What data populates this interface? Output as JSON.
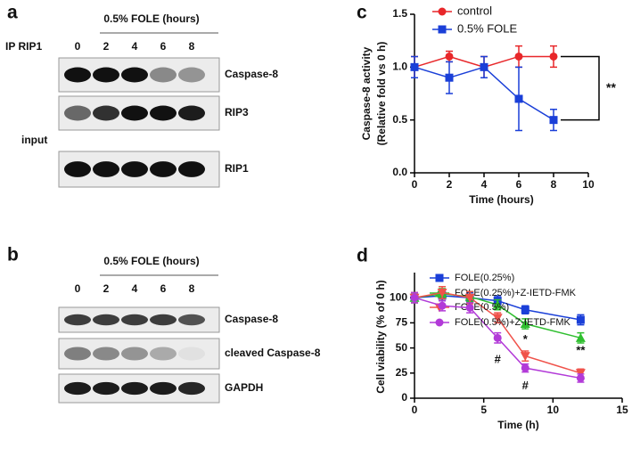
{
  "blots": [
    {
      "panel_label": "a",
      "title": "0.5% FOLE (hours)",
      "lanes": [
        0,
        2,
        4,
        6,
        8
      ],
      "ip_label": "IP RIP1",
      "input_label": "input",
      "rows": [
        "Caspase-8",
        "RIP3",
        "RIP1"
      ]
    },
    {
      "panel_label": "b",
      "title": "0.5% FOLE (hours)",
      "lanes": [
        0,
        2,
        4,
        6,
        8
      ],
      "rows": [
        "Caspase-8",
        "cleaved Caspase-8",
        "GAPDH"
      ]
    }
  ],
  "chart_data": [
    {
      "type": "line",
      "panel_label": "c",
      "x_label": "Time (hours)",
      "y_label": [
        "Caspase-8 activity",
        "(Relative fold vs 0 h)"
      ],
      "x": [
        0,
        2,
        4,
        6,
        8
      ],
      "xlim": [
        0,
        10
      ],
      "xticks": [
        0,
        2,
        4,
        6,
        8,
        10
      ],
      "ylim": [
        0,
        1.5
      ],
      "yticks": [
        {
          "value": 0,
          "label": "0.0"
        },
        {
          "value": 0.5,
          "label": "0.5"
        },
        {
          "value": 1,
          "label": "1.0"
        },
        {
          "value": 1.5,
          "label": "1.5"
        }
      ],
      "series": [
        {
          "name": "control",
          "color": "#e8272a",
          "marker": "circle",
          "values": [
            1,
            1.1,
            1,
            1.1,
            1.1
          ],
          "errors": [
            0.1,
            0.05,
            0.1,
            0.1,
            0.1
          ]
        },
        {
          "name": "0.5% FOLE",
          "color": "#1a3fd8",
          "marker": "square",
          "values": [
            1,
            0.9,
            1,
            0.7,
            0.5
          ],
          "errors": [
            0.1,
            0.15,
            0.1,
            0.3,
            0.1
          ]
        }
      ],
      "annotations": [
        "**"
      ]
    },
    {
      "type": "line",
      "panel_label": "d",
      "x_label": "Time (h)",
      "y_label": [
        "Cell viability (% of 0 h)"
      ],
      "x": [
        0,
        2,
        4,
        6,
        8,
        12
      ],
      "xlim": [
        0,
        15
      ],
      "xticks": [
        0,
        5,
        10,
        15
      ],
      "ylim": [
        0,
        125
      ],
      "yticks": [
        0,
        25,
        50,
        75,
        100
      ],
      "series": [
        {
          "name": "FOLE(0.25%)",
          "color": "#1a3fd8",
          "marker": "square",
          "values": [
            100,
            102,
            100,
            97,
            88,
            78
          ],
          "errors": [
            5,
            5,
            5,
            5,
            4,
            5
          ]
        },
        {
          "name": "FOLE(0.25%)+Z-IETD-FMK",
          "color": "#2fbf2f",
          "marker": "triangle-up",
          "values": [
            100,
            104,
            101,
            93,
            74,
            60
          ],
          "errors": [
            5,
            5,
            5,
            5,
            5,
            5
          ]
        },
        {
          "name": "FOLE(0.5%)",
          "color": "#f0524a",
          "marker": "triangle-down",
          "values": [
            100,
            105,
            100,
            80,
            42,
            25
          ],
          "errors": [
            5,
            6,
            6,
            5,
            5,
            4
          ]
        },
        {
          "name": "FOLE(0.5%)+Z-IETD-FMK",
          "color": "#b23ad8",
          "marker": "circle",
          "values": [
            100,
            92,
            90,
            60,
            30,
            20
          ],
          "errors": [
            5,
            5,
            5,
            5,
            4,
            4
          ]
        }
      ],
      "annotations": [
        "#",
        "#",
        "*",
        "**"
      ]
    }
  ]
}
